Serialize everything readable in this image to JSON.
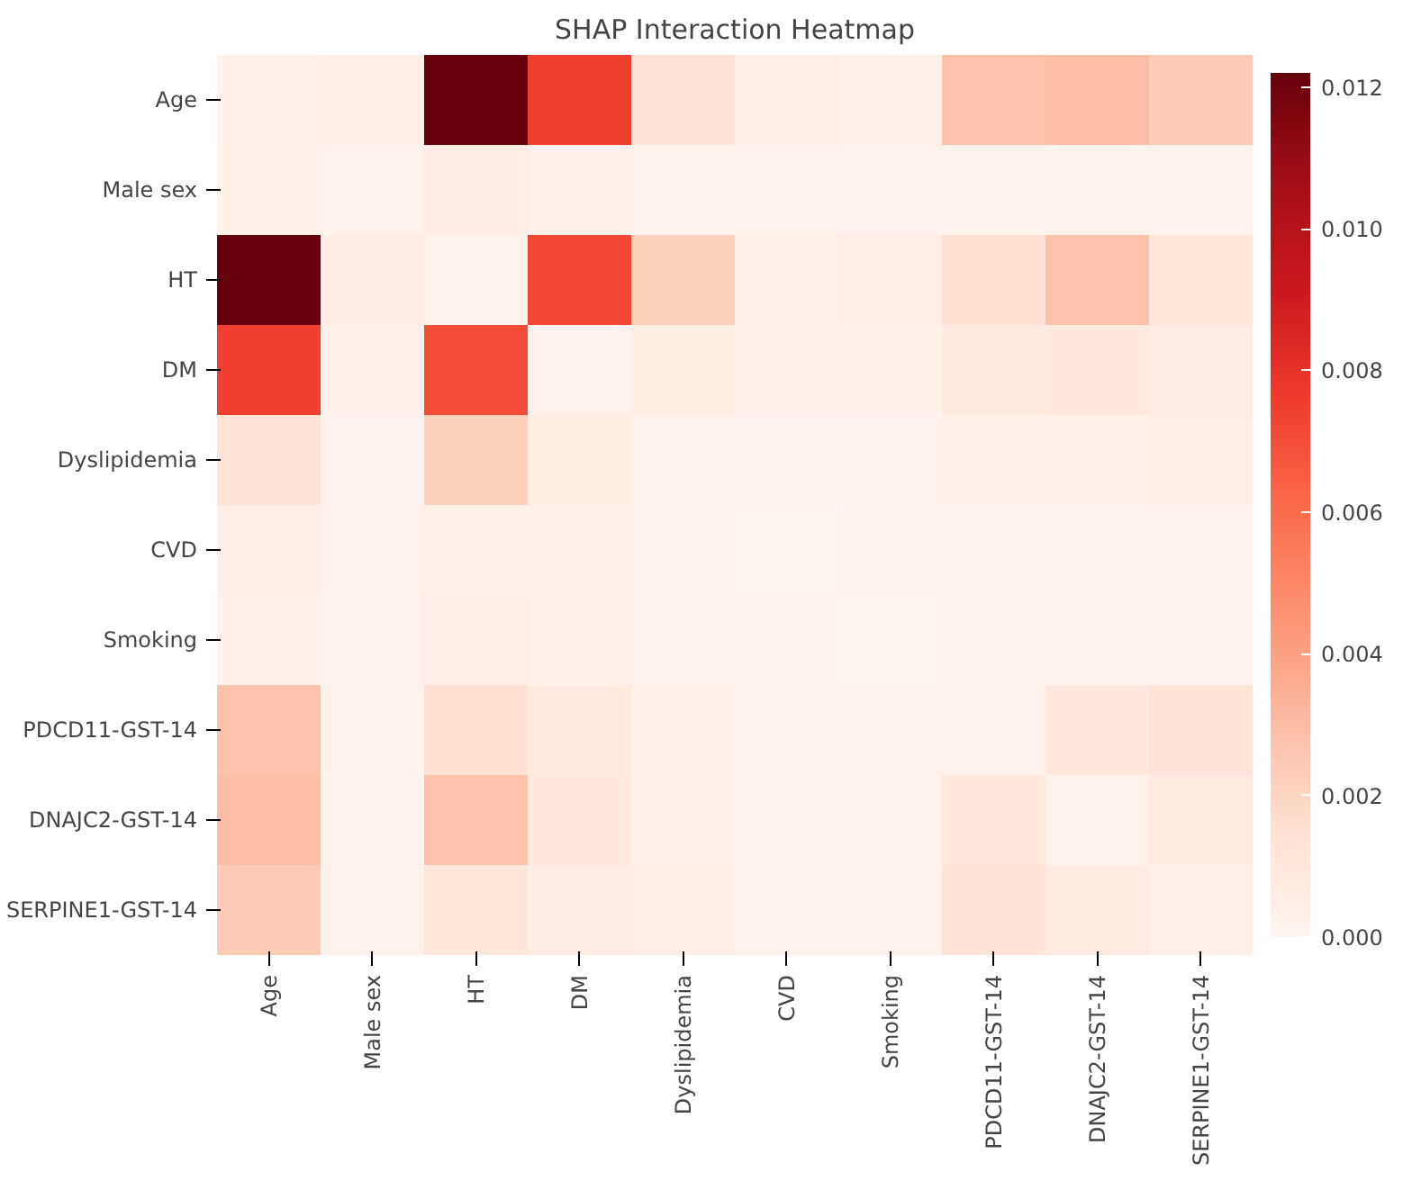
{
  "chart_data": {
    "type": "heatmap",
    "title": "SHAP Interaction Heatmap",
    "categories": [
      "Age",
      "Male sex",
      "HT",
      "DM",
      "Dyslipidemia",
      "CVD",
      "Smoking",
      "PDCD11-GST-14",
      "DNAJC2-GST-14",
      "SERPINE1-GST-14"
    ],
    "y_categories": [
      "Age",
      "Male sex",
      "HT",
      "DM",
      "Dyslipidemia",
      "CVD",
      "Smoking",
      "PDCD11-GST-14",
      "DNAJC2-GST-14",
      "SERPINE1-GST-14"
    ],
    "cells": [
      [
        0.0003,
        0.0005,
        0.0122,
        0.0075,
        0.0013,
        0.0005,
        0.0003,
        0.0028,
        0.003,
        0.0024
      ],
      [
        0.0004,
        0.0002,
        0.0006,
        0.0003,
        0.0002,
        0.0002,
        0.0002,
        0.0002,
        0.0002,
        0.0002
      ],
      [
        0.0122,
        0.0006,
        0.0002,
        0.0072,
        0.0022,
        0.0004,
        0.0005,
        0.0015,
        0.0028,
        0.0011
      ],
      [
        0.0075,
        0.0003,
        0.0071,
        0.0002,
        0.0007,
        0.0003,
        0.0003,
        0.0009,
        0.001,
        0.0006
      ],
      [
        0.0013,
        0.0002,
        0.0022,
        0.0007,
        0.0002,
        0.0002,
        0.0002,
        0.0004,
        0.0004,
        0.0005
      ],
      [
        0.0005,
        0.0002,
        0.0004,
        0.0003,
        0.0002,
        0.0001,
        0.0002,
        0.0002,
        0.0002,
        0.0002
      ],
      [
        0.0003,
        0.0002,
        0.0005,
        0.0003,
        0.0002,
        0.0002,
        0.0001,
        0.0002,
        0.0002,
        0.0002
      ],
      [
        0.0028,
        0.0002,
        0.0015,
        0.0009,
        0.0004,
        0.0002,
        0.0002,
        0.0002,
        0.001,
        0.0013
      ],
      [
        0.003,
        0.0002,
        0.0028,
        0.001,
        0.0004,
        0.0002,
        0.0002,
        0.001,
        0.0002,
        0.0008
      ],
      [
        0.0024,
        0.0002,
        0.0011,
        0.0006,
        0.0005,
        0.0002,
        0.0002,
        0.0013,
        0.0008,
        0.0003
      ]
    ],
    "clim": [
      0,
      0.0122
    ],
    "cticks": [
      {
        "value": 0,
        "label": "0.000"
      },
      {
        "value": 0.002,
        "label": "0.002"
      },
      {
        "value": 0.004,
        "label": "0.004"
      },
      {
        "value": 0.006,
        "label": "0.006"
      },
      {
        "value": 0.008,
        "label": "0.008"
      },
      {
        "value": 0.01,
        "label": "0.010"
      },
      {
        "value": 0.012,
        "label": "0.012"
      }
    ]
  }
}
